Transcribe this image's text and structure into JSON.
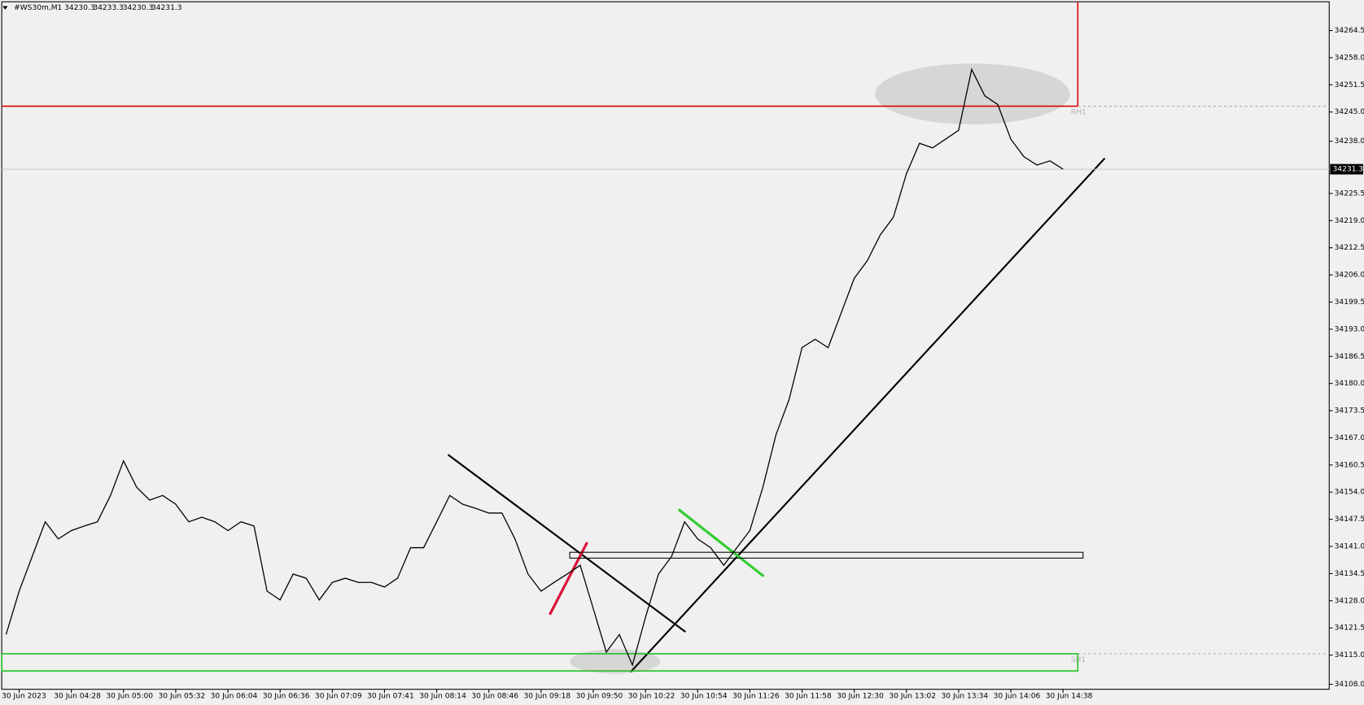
{
  "chart_data": {
    "type": "line",
    "symbol": "#WS30m,M1",
    "ohlc": [
      34230.3,
      34233.3,
      34230.3,
      34231.3
    ],
    "current_price": 34231.3,
    "annotations": [
      "RH1",
      "SH1"
    ],
    "color": "#000000",
    "resistance_level": 34246.4,
    "support_zone": [
      34115.3,
      34111.2
    ],
    "breakout_zone": [
      34139.6,
      34138.2
    ],
    "values": [
      34119.9,
      34130.3,
      34138.6,
      34146.9,
      34142.8,
      34144.8,
      34145.9,
      34146.9,
      34153.2,
      34161.5,
      34155.2,
      34152.1,
      34153.2,
      34151.1,
      34146.9,
      34148.0,
      34146.9,
      34144.8,
      34146.9,
      34145.9,
      34130.3,
      34128.2,
      34134.4,
      34133.4,
      34128.2,
      34132.4,
      34133.4,
      34132.4,
      34132.4,
      34131.3,
      34133.4,
      34140.7,
      34140.7,
      34146.9,
      34153.2,
      34151.1,
      34150.1,
      34149.0,
      34149.0,
      34142.8,
      34134.4,
      34130.3,
      34132.4,
      34134.4,
      34136.5,
      34126.1,
      34115.7,
      34119.9,
      34112.6,
      34124.0,
      34134.4,
      34138.6,
      34146.9,
      34142.8,
      34140.7,
      34136.5,
      34140.7,
      34144.8,
      34155.2,
      34167.7,
      34176.1,
      34188.6,
      34190.6,
      34188.6,
      34196.9,
      34205.2,
      34209.4,
      34215.6,
      34219.8,
      34230.2,
      34237.5,
      34236.4,
      34238.5,
      34240.6,
      34255.2,
      34248.9,
      34246.8,
      34238.5,
      34234.3,
      34232.3,
      34233.3,
      34231.3
    ],
    "xlim": [
      0,
      101.4
    ],
    "xticks": [
      {
        "value": 1,
        "label": "30 Jun 2023"
      },
      {
        "value": 5,
        "label": "30 Jun 04:28"
      },
      {
        "value": 9,
        "label": "30 Jun 05:00"
      },
      {
        "value": 13,
        "label": "30 Jun 05:32"
      },
      {
        "value": 17,
        "label": "30 Jun 06:04"
      },
      {
        "value": 21,
        "label": "30 Jun 06:36"
      },
      {
        "value": 25,
        "label": "30 Jun 07:09"
      },
      {
        "value": 29,
        "label": "30 Jun 07:41"
      },
      {
        "value": 33,
        "label": "30 Jun 08:14"
      },
      {
        "value": 37,
        "label": "30 Jun 08:46"
      },
      {
        "value": 41,
        "label": "30 Jun 09:18"
      },
      {
        "value": 45,
        "label": "30 Jun 09:50"
      },
      {
        "value": 49,
        "label": "30 Jun 10:22"
      },
      {
        "value": 53,
        "label": "30 Jun 10:54"
      },
      {
        "value": 57,
        "label": "30 Jun 11:26"
      },
      {
        "value": 61,
        "label": "30 Jun 11:58"
      },
      {
        "value": 65,
        "label": "30 Jun 12:30"
      },
      {
        "value": 69,
        "label": "30 Jun 13:02"
      },
      {
        "value": 73,
        "label": "30 Jun 13:34"
      },
      {
        "value": 77,
        "label": "30 Jun 14:06"
      },
      {
        "value": 81,
        "label": "30 Jun 14:38"
      }
    ],
    "ylim": [
      34106.8,
      34271.8
    ],
    "yticks": [
      {
        "value": 34264.5,
        "label": "34264.5"
      },
      {
        "value": 34258.0,
        "label": "34258.0"
      },
      {
        "value": 34251.5,
        "label": "34251.5"
      },
      {
        "value": 34245.0,
        "label": "34245.0"
      },
      {
        "value": 34238.0,
        "label": "34238.0"
      },
      {
        "value": 34225.5,
        "label": "34225.5"
      },
      {
        "value": 34219.0,
        "label": "34219.0"
      },
      {
        "value": 34212.5,
        "label": "34212.5"
      },
      {
        "value": 34206.0,
        "label": "34206.0"
      },
      {
        "value": 34199.5,
        "label": "34199.5"
      },
      {
        "value": 34193.0,
        "label": "34193.0"
      },
      {
        "value": 34186.5,
        "label": "34186.5"
      },
      {
        "value": 34180.0,
        "label": "34180.0"
      },
      {
        "value": 34173.5,
        "label": "34173.5"
      },
      {
        "value": 34167.0,
        "label": "34167.0"
      },
      {
        "value": 34160.5,
        "label": "34160.5"
      },
      {
        "value": 34154.0,
        "label": "34154.0"
      },
      {
        "value": 34147.5,
        "label": "34147.5"
      },
      {
        "value": 34141.0,
        "label": "34141.0"
      },
      {
        "value": 34134.5,
        "label": "34134.5"
      },
      {
        "value": 34128.0,
        "label": "34128.0"
      },
      {
        "value": 34121.5,
        "label": "34121.5"
      },
      {
        "value": 34115.0,
        "label": "34115.0"
      },
      {
        "value": 34108.0,
        "label": "34108.0"
      }
    ]
  }
}
